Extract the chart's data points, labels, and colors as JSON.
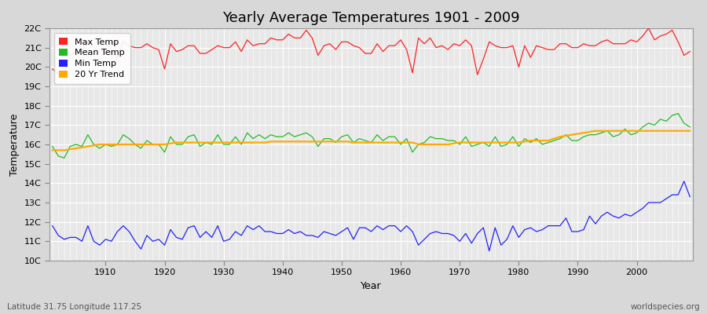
{
  "title": "Yearly Average Temperatures 1901 - 2009",
  "xlabel": "Year",
  "ylabel": "Temperature",
  "lat_lon_label": "Latitude 31.75 Longitude 117.25",
  "source_label": "worldspecies.org",
  "years": [
    1901,
    1902,
    1903,
    1904,
    1905,
    1906,
    1907,
    1908,
    1909,
    1910,
    1911,
    1912,
    1913,
    1914,
    1915,
    1916,
    1917,
    1918,
    1919,
    1920,
    1921,
    1922,
    1923,
    1924,
    1925,
    1926,
    1927,
    1928,
    1929,
    1930,
    1931,
    1932,
    1933,
    1934,
    1935,
    1936,
    1937,
    1938,
    1939,
    1940,
    1941,
    1942,
    1943,
    1944,
    1945,
    1946,
    1947,
    1948,
    1949,
    1950,
    1951,
    1952,
    1953,
    1954,
    1955,
    1956,
    1957,
    1958,
    1959,
    1960,
    1961,
    1962,
    1963,
    1964,
    1965,
    1966,
    1967,
    1968,
    1969,
    1970,
    1971,
    1972,
    1973,
    1974,
    1975,
    1976,
    1977,
    1978,
    1979,
    1980,
    1981,
    1982,
    1983,
    1984,
    1985,
    1986,
    1987,
    1988,
    1989,
    1990,
    1991,
    1992,
    1993,
    1994,
    1995,
    1996,
    1997,
    1998,
    1999,
    2000,
    2001,
    2002,
    2003,
    2004,
    2005,
    2006,
    2007,
    2008,
    2009
  ],
  "max_temp": [
    19.9,
    19.6,
    19.7,
    20.6,
    20.8,
    20.8,
    21.3,
    21.0,
    20.8,
    20.9,
    20.8,
    20.5,
    21.3,
    21.1,
    21.0,
    21.0,
    21.2,
    21.0,
    20.9,
    19.9,
    21.2,
    20.8,
    20.9,
    21.1,
    21.1,
    20.7,
    20.7,
    20.9,
    21.1,
    21.0,
    21.0,
    21.3,
    20.8,
    21.4,
    21.1,
    21.2,
    21.2,
    21.5,
    21.4,
    21.4,
    21.7,
    21.5,
    21.5,
    21.9,
    21.5,
    20.6,
    21.1,
    21.2,
    20.9,
    21.3,
    21.3,
    21.1,
    21.0,
    20.7,
    20.7,
    21.2,
    20.8,
    21.1,
    21.1,
    21.4,
    20.9,
    19.7,
    21.5,
    21.2,
    21.5,
    21.0,
    21.1,
    20.9,
    21.2,
    21.1,
    21.4,
    21.1,
    19.6,
    20.4,
    21.3,
    21.1,
    21.0,
    21.0,
    21.1,
    20.0,
    21.1,
    20.5,
    21.1,
    21.0,
    20.9,
    20.9,
    21.2,
    21.2,
    21.0,
    21.0,
    21.2,
    21.1,
    21.1,
    21.3,
    21.4,
    21.2,
    21.2,
    21.2,
    21.4,
    21.3,
    21.6,
    22.0,
    21.4,
    21.6,
    21.7,
    21.9,
    21.3,
    20.6,
    20.8
  ],
  "mean_temp": [
    15.9,
    15.4,
    15.3,
    15.9,
    16.0,
    15.9,
    16.5,
    16.0,
    15.8,
    16.0,
    15.9,
    16.0,
    16.5,
    16.3,
    16.0,
    15.8,
    16.2,
    16.0,
    16.0,
    15.6,
    16.4,
    16.0,
    16.0,
    16.4,
    16.5,
    15.9,
    16.1,
    16.0,
    16.5,
    16.0,
    16.0,
    16.4,
    16.0,
    16.6,
    16.3,
    16.5,
    16.3,
    16.5,
    16.4,
    16.4,
    16.6,
    16.4,
    16.5,
    16.6,
    16.4,
    15.9,
    16.3,
    16.3,
    16.1,
    16.4,
    16.5,
    16.1,
    16.3,
    16.2,
    16.1,
    16.5,
    16.2,
    16.4,
    16.4,
    16.0,
    16.3,
    15.6,
    16.0,
    16.1,
    16.4,
    16.3,
    16.3,
    16.2,
    16.2,
    16.0,
    16.4,
    15.9,
    16.0,
    16.1,
    15.9,
    16.4,
    15.9,
    16.0,
    16.4,
    15.9,
    16.3,
    16.1,
    16.3,
    16.0,
    16.1,
    16.2,
    16.3,
    16.5,
    16.2,
    16.2,
    16.4,
    16.5,
    16.5,
    16.6,
    16.7,
    16.4,
    16.5,
    16.8,
    16.5,
    16.6,
    16.9,
    17.1,
    17.0,
    17.3,
    17.2,
    17.5,
    17.6,
    17.1,
    16.9
  ],
  "min_temp": [
    11.8,
    11.3,
    11.1,
    11.2,
    11.2,
    11.0,
    11.8,
    11.0,
    10.8,
    11.1,
    11.0,
    11.5,
    11.8,
    11.5,
    11.0,
    10.6,
    11.3,
    11.0,
    11.1,
    10.8,
    11.6,
    11.2,
    11.1,
    11.7,
    11.8,
    11.2,
    11.5,
    11.2,
    11.8,
    11.0,
    11.1,
    11.5,
    11.3,
    11.8,
    11.6,
    11.8,
    11.5,
    11.5,
    11.4,
    11.4,
    11.6,
    11.4,
    11.5,
    11.3,
    11.3,
    11.2,
    11.5,
    11.4,
    11.3,
    11.5,
    11.7,
    11.1,
    11.7,
    11.7,
    11.5,
    11.8,
    11.6,
    11.8,
    11.8,
    11.5,
    11.8,
    11.5,
    10.8,
    11.1,
    11.4,
    11.5,
    11.4,
    11.4,
    11.3,
    11.0,
    11.4,
    10.9,
    11.4,
    11.7,
    10.5,
    11.7,
    10.8,
    11.1,
    11.8,
    11.2,
    11.6,
    11.7,
    11.5,
    11.6,
    11.8,
    11.8,
    11.8,
    12.2,
    11.5,
    11.5,
    11.6,
    12.3,
    11.9,
    12.3,
    12.5,
    12.3,
    12.2,
    12.4,
    12.3,
    12.5,
    12.7,
    13.0,
    13.0,
    13.0,
    13.2,
    13.4,
    13.4,
    14.1,
    13.3
  ],
  "trend_20yr": [
    15.7,
    15.7,
    15.7,
    15.75,
    15.8,
    15.85,
    15.9,
    15.95,
    16.0,
    16.0,
    16.0,
    16.0,
    16.0,
    16.0,
    16.0,
    16.0,
    16.0,
    16.0,
    16.0,
    16.0,
    16.05,
    16.1,
    16.1,
    16.1,
    16.1,
    16.1,
    16.1,
    16.1,
    16.1,
    16.1,
    16.1,
    16.1,
    16.1,
    16.1,
    16.1,
    16.1,
    16.1,
    16.15,
    16.15,
    16.15,
    16.15,
    16.15,
    16.15,
    16.15,
    16.15,
    16.15,
    16.15,
    16.15,
    16.15,
    16.15,
    16.15,
    16.1,
    16.1,
    16.1,
    16.1,
    16.1,
    16.1,
    16.1,
    16.1,
    16.1,
    16.1,
    16.1,
    16.0,
    16.0,
    16.0,
    16.0,
    16.0,
    16.0,
    16.05,
    16.1,
    16.1,
    16.1,
    16.1,
    16.1,
    16.1,
    16.1,
    16.1,
    16.1,
    16.1,
    16.1,
    16.15,
    16.2,
    16.2,
    16.2,
    16.2,
    16.3,
    16.4,
    16.45,
    16.5,
    16.55,
    16.6,
    16.65,
    16.7,
    16.7,
    16.7,
    16.7,
    16.7,
    16.7,
    16.7,
    16.7,
    16.7,
    16.7,
    16.7,
    16.7,
    16.7,
    16.7,
    16.7,
    16.7,
    16.7
  ],
  "ylim": [
    10,
    22
  ],
  "yticks": [
    10,
    11,
    12,
    13,
    14,
    15,
    16,
    17,
    18,
    19,
    20,
    21,
    22
  ],
  "ytick_labels": [
    "10C",
    "11C",
    "12C",
    "13C",
    "14C",
    "15C",
    "16C",
    "17C",
    "18C",
    "19C",
    "20C",
    "21C",
    "22C"
  ],
  "xlim_left": 1901,
  "xlim_right": 2009,
  "xticks": [
    1910,
    1920,
    1930,
    1940,
    1950,
    1960,
    1970,
    1980,
    1990,
    2000
  ],
  "max_color": "#ff2222",
  "mean_color": "#22bb22",
  "min_color": "#2222ff",
  "trend_color": "#ffaa00",
  "fig_bg_color": "#d8d8d8",
  "plot_bg_color": "#e8e8e8",
  "grid_color": "#ffffff",
  "title_fontsize": 13,
  "axis_label_fontsize": 9,
  "tick_fontsize": 8,
  "legend_fontsize": 8,
  "line_width": 0.9
}
